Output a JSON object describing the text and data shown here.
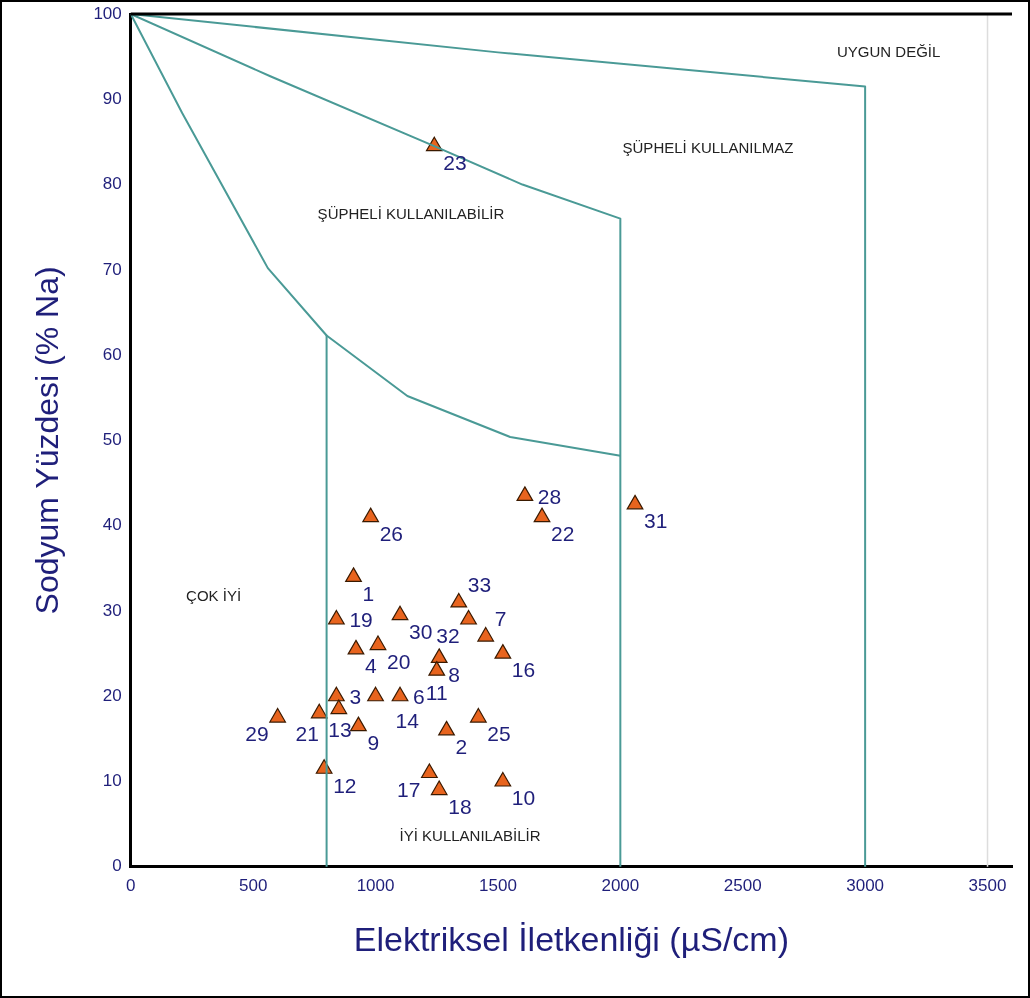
{
  "chart_data": {
    "type": "scatter",
    "xlabel": "Elektriksel İletkenliği (µS/cm)",
    "ylabel": "Sodyum Yüzdesi (% Na)",
    "xlim": [
      0,
      3600
    ],
    "xticks": [
      0,
      500,
      1000,
      1500,
      2000,
      2500,
      3000,
      3500
    ],
    "ylim": [
      0,
      100
    ],
    "yticks": [
      0,
      10,
      20,
      30,
      40,
      50,
      60,
      70,
      80,
      90,
      100
    ],
    "grid": false,
    "legend": false,
    "series": [
      {
        "type": "line",
        "color": "#4a9a96",
        "marker": "none",
        "x": [
          0,
          1500,
          3000,
          3000
        ],
        "values": [
          100,
          95.5,
          91.5,
          0
        ]
      },
      {
        "type": "line",
        "color": "#4a9a96",
        "marker": "none",
        "x": [
          0,
          570,
          1240,
          1600,
          2000,
          2000
        ],
        "values": [
          100,
          92.7,
          84.5,
          80,
          76,
          0
        ]
      },
      {
        "type": "line",
        "color": "#4a9a96",
        "marker": "none",
        "x": [
          0,
          210,
          560,
          800,
          1130,
          1550,
          2000
        ],
        "values": [
          100,
          88.4,
          70.2,
          62.3,
          55.2,
          50.4,
          48.2
        ]
      },
      {
        "type": "line",
        "color": "#4a9a96",
        "marker": "none",
        "x": [
          800,
          800
        ],
        "values": [
          62.3,
          0
        ]
      },
      {
        "type": "scatter",
        "color": "#e8641e",
        "marker": "triangle",
        "x": [
          980,
          1610,
          1680,
          2060,
          910,
          840,
          1100,
          1340,
          1380,
          1450,
          1520,
          920,
          1010,
          1260,
          1250,
          840,
          850,
          770,
          1000,
          1100,
          600,
          930,
          1290,
          1420,
          790,
          1220,
          1260,
          1520,
          1240
        ],
        "values": [
          41,
          43.5,
          41,
          42.5,
          34,
          29,
          29.5,
          31,
          29,
          27,
          25,
          25.5,
          26,
          24.5,
          23,
          20,
          18.5,
          18,
          20,
          20,
          17.5,
          16.5,
          16,
          17.5,
          11.5,
          11,
          9,
          10,
          84.5
        ]
      }
    ],
    "ref_lines": [
      {
        "axis": "x",
        "value": 3500,
        "color": "#dddddd"
      }
    ],
    "annotations": [
      "UYGUN DEĞİL",
      "ŞÜPHELİ KULLANILMAZ",
      "ŞÜPHELİ KULLANILABİLİR",
      "ÇOK İYİ",
      "İYİ KULLANILABİLİR",
      {
        "text": "26",
        "x": 980,
        "y": 41
      },
      {
        "text": "28",
        "x": 1610,
        "y": 43.5
      },
      {
        "text": "22",
        "x": 1680,
        "y": 41
      },
      {
        "text": "31",
        "x": 2060,
        "y": 42.5
      },
      {
        "text": "1",
        "x": 910,
        "y": 34
      },
      {
        "text": "19",
        "x": 840,
        "y": 29
      },
      {
        "text": "30",
        "x": 1100,
        "y": 29.5
      },
      {
        "text": "33",
        "x": 1340,
        "y": 31
      },
      {
        "text": "32",
        "x": 1380,
        "y": 29
      },
      {
        "text": "7",
        "x": 1450,
        "y": 27
      },
      {
        "text": "16",
        "x": 1520,
        "y": 25
      },
      {
        "text": "4",
        "x": 920,
        "y": 25.5
      },
      {
        "text": "20",
        "x": 1010,
        "y": 26
      },
      {
        "text": "8",
        "x": 1260,
        "y": 24.5
      },
      {
        "text": "11",
        "x": 1250,
        "y": 23
      },
      {
        "text": "3",
        "x": 840,
        "y": 20
      },
      {
        "text": "21",
        "x": 850,
        "y": 18.5
      },
      {
        "text": "13",
        "x": 770,
        "y": 18
      },
      {
        "text": "14",
        "x": 1000,
        "y": 20
      },
      {
        "text": "6",
        "x": 1100,
        "y": 20
      },
      {
        "text": "29",
        "x": 600,
        "y": 17.5
      },
      {
        "text": "9",
        "x": 930,
        "y": 16.5
      },
      {
        "text": "2",
        "x": 1290,
        "y": 16
      },
      {
        "text": "25",
        "x": 1420,
        "y": 17.5
      },
      {
        "text": "12",
        "x": 790,
        "y": 11.5
      },
      {
        "text": "17",
        "x": 1220,
        "y": 11
      },
      {
        "text": "18",
        "x": 1260,
        "y": 9
      },
      {
        "text": "10",
        "x": 1520,
        "y": 10
      },
      {
        "text": "23",
        "x": 1240,
        "y": 84.5
      }
    ]
  }
}
